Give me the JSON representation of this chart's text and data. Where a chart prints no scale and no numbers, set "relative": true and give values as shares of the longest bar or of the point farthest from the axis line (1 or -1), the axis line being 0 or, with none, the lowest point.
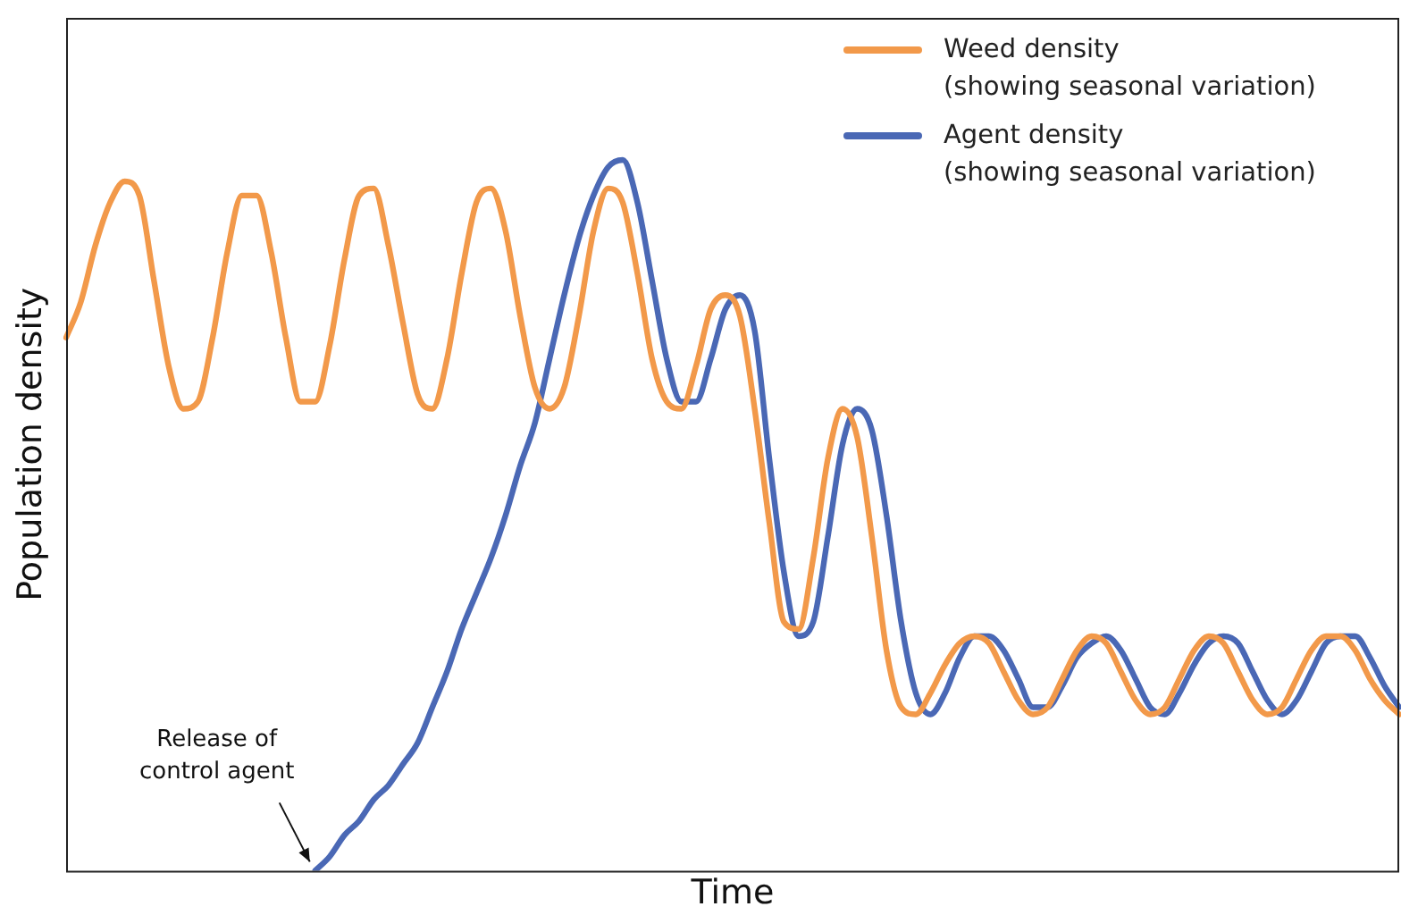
{
  "chart_data": {
    "type": "line",
    "relative": true,
    "xlabel": "Time",
    "ylabel": "Population density",
    "legend": "top right",
    "grid": false,
    "marker": "none",
    "line_style": "solid",
    "annotations": [
      "Release of\ncontrol agent"
    ],
    "categories": [
      null,
      null,
      null,
      null,
      null,
      null,
      null,
      null,
      null,
      null,
      null,
      null,
      null,
      null,
      null,
      null,
      null,
      null,
      null,
      null,
      null,
      null,
      null,
      null,
      null,
      null,
      null,
      null,
      null,
      null,
      null,
      null,
      null,
      null,
      null,
      null,
      null,
      null,
      null,
      null,
      null,
      null,
      null,
      null,
      null,
      null,
      null,
      null,
      null,
      null,
      null,
      null,
      null,
      null,
      null,
      null,
      null,
      null,
      null,
      null,
      null,
      null,
      null,
      null,
      null,
      null,
      null,
      null,
      null,
      null,
      null,
      null,
      null,
      null,
      null,
      null,
      null,
      null,
      null,
      null,
      null,
      null,
      null,
      null,
      null,
      null,
      null,
      null,
      null,
      null,
      null,
      null
    ],
    "series": [
      {
        "name": "Weed density\n(showing seasonal variation)",
        "color": "#f2994a",
        "values": [
          0.75,
          0.8,
          0.88,
          0.94,
          0.97,
          0.95,
          0.83,
          0.71,
          0.65,
          0.66,
          0.75,
          0.87,
          0.95,
          0.95,
          0.87,
          0.75,
          0.66,
          0.66,
          0.74,
          0.86,
          0.95,
          0.96,
          0.88,
          0.77,
          0.67,
          0.65,
          0.72,
          0.84,
          0.94,
          0.96,
          0.9,
          0.78,
          0.68,
          0.65,
          0.68,
          0.78,
          0.9,
          0.96,
          0.94,
          0.84,
          0.72,
          0.66,
          0.65,
          0.71,
          0.79,
          0.81,
          0.78,
          0.65,
          0.49,
          0.35,
          0.34,
          0.44,
          0.58,
          0.65,
          0.61,
          0.47,
          0.31,
          0.23,
          0.22,
          0.25,
          0.29,
          0.32,
          0.33,
          0.32,
          0.28,
          0.24,
          0.22,
          0.23,
          0.27,
          0.31,
          0.33,
          0.32,
          0.28,
          0.24,
          0.22,
          0.23,
          0.27,
          0.31,
          0.33,
          0.32,
          0.28,
          0.24,
          0.22,
          0.23,
          0.27,
          0.31,
          0.33,
          0.33,
          0.31,
          0.27,
          0.24,
          0.22
        ]
      },
      {
        "name": "Agent density\n(showing seasonal variation)",
        "color": "#4a68b5",
        "values": [
          null,
          null,
          null,
          null,
          null,
          null,
          null,
          null,
          null,
          null,
          null,
          null,
          null,
          null,
          null,
          null,
          null,
          0.0,
          0.02,
          0.05,
          0.07,
          0.1,
          0.12,
          0.15,
          0.18,
          0.23,
          0.28,
          0.34,
          0.39,
          0.44,
          0.5,
          0.57,
          0.63,
          0.72,
          0.81,
          0.89,
          0.95,
          0.99,
          1.0,
          0.94,
          0.83,
          0.72,
          0.66,
          0.66,
          0.72,
          0.79,
          0.81,
          0.76,
          0.58,
          0.42,
          0.33,
          0.35,
          0.47,
          0.6,
          0.65,
          0.62,
          0.5,
          0.35,
          0.25,
          0.22,
          0.25,
          0.3,
          0.33,
          0.33,
          0.31,
          0.27,
          0.23,
          0.23,
          0.26,
          0.3,
          0.32,
          0.33,
          0.31,
          0.27,
          0.23,
          0.22,
          0.25,
          0.29,
          0.32,
          0.33,
          0.32,
          0.28,
          0.24,
          0.22,
          0.24,
          0.28,
          0.32,
          0.33,
          0.33,
          0.3,
          0.26,
          0.23
        ]
      }
    ]
  }
}
